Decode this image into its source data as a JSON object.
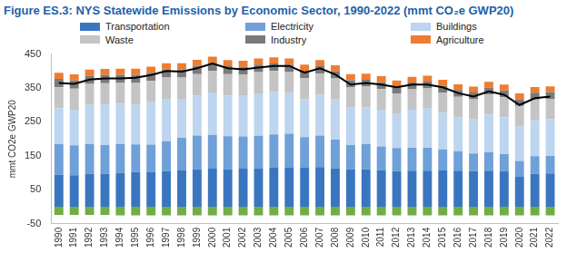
{
  "chart_data": {
    "type": "bar",
    "title": "Figure ES.3: NYS Statewide Emissions by Economic Sector, 1990-2022 (mmt CO₂e GWP20)",
    "y_label": "mmt CO2e GWP20",
    "categories": [
      "1990",
      "1991",
      "1992",
      "1993",
      "1994",
      "1995",
      "1996",
      "1997",
      "1998",
      "1999",
      "2000",
      "2001",
      "2002",
      "2003",
      "2004",
      "2005",
      "2006",
      "2007",
      "2008",
      "2009",
      "2010",
      "2011",
      "2012",
      "2013",
      "2014",
      "2015",
      "2016",
      "2017",
      "2018",
      "2019",
      "2020",
      "2021",
      "2022"
    ],
    "stacked": true,
    "grid": false,
    "legend": "top",
    "ylim": [
      -50,
      450
    ],
    "yticks": [
      -50,
      50,
      150,
      250,
      350,
      450
    ],
    "series": [
      {
        "name": "Transportation",
        "color": "#3a76c0",
        "values": [
          95,
          93,
          97,
          97,
          100,
          102,
          103,
          105,
          108,
          110,
          112,
          110,
          112,
          113,
          115,
          115,
          115,
          117,
          113,
          110,
          110,
          108,
          105,
          106,
          106,
          107,
          106,
          105,
          106,
          105,
          88,
          97,
          98
        ]
      },
      {
        "name": "Electricity",
        "color": "#6fa0d8",
        "values": [
          90,
          88,
          88,
          85,
          85,
          82,
          80,
          88,
          95,
          100,
          100,
          98,
          95,
          96,
          98,
          100,
          90,
          93,
          85,
          72,
          75,
          70,
          68,
          68,
          68,
          62,
          58,
          52,
          55,
          50,
          47,
          52,
          52
        ]
      },
      {
        "name": "Buildings",
        "color": "#bdd5ee",
        "values": [
          105,
          105,
          115,
          120,
          118,
          118,
          125,
          125,
          115,
          118,
          125,
          120,
          120,
          125,
          125,
          120,
          112,
          120,
          118,
          110,
          108,
          108,
          100,
          112,
          115,
          108,
          100,
          100,
          110,
          108,
          102,
          107,
          108
        ]
      },
      {
        "name": "Waste",
        "color": "#c4c4c4",
        "values": [
          62,
          62,
          62,
          62,
          62,
          63,
          63,
          63,
          63,
          63,
          63,
          63,
          63,
          63,
          62,
          62,
          62,
          62,
          62,
          61,
          61,
          61,
          61,
          60,
          60,
          60,
          60,
          60,
          60,
          60,
          60,
          60,
          60
        ]
      },
      {
        "name": "Industry",
        "color": "#7a7a7a",
        "values": [
          25,
          24,
          24,
          24,
          24,
          24,
          24,
          24,
          24,
          24,
          24,
          23,
          22,
          22,
          22,
          22,
          22,
          22,
          21,
          20,
          20,
          20,
          20,
          20,
          20,
          20,
          20,
          20,
          20,
          20,
          20,
          20,
          20
        ]
      },
      {
        "name": "Agriculture",
        "color": "#ee7d31",
        "values": [
          18,
          18,
          18,
          18,
          18,
          18,
          18,
          18,
          18,
          18,
          18,
          18,
          18,
          18,
          18,
          18,
          18,
          18,
          18,
          18,
          18,
          18,
          18,
          17,
          17,
          17,
          17,
          17,
          17,
          17,
          17,
          17,
          17
        ]
      },
      {
        "color": "#70ad47",
        "values": [
          -24,
          -24,
          -24,
          -24,
          -25,
          -25,
          -25,
          -25,
          -25,
          -25,
          -25,
          -25,
          -25,
          -25,
          -25,
          -25,
          -25,
          -25,
          -25,
          -25,
          -25,
          -25,
          -25,
          -25,
          -25,
          -25,
          -25,
          -25,
          -25,
          -25,
          -25,
          -25,
          -25
        ]
      },
      {
        "type": "line",
        "color": "#000000",
        "values": [
          365,
          362,
          375,
          378,
          378,
          380,
          388,
          400,
          398,
          408,
          422,
          408,
          405,
          410,
          415,
          415,
          395,
          408,
          390,
          360,
          365,
          360,
          352,
          360,
          360,
          352,
          335,
          325,
          340,
          330,
          300,
          320,
          325
        ]
      }
    ]
  }
}
